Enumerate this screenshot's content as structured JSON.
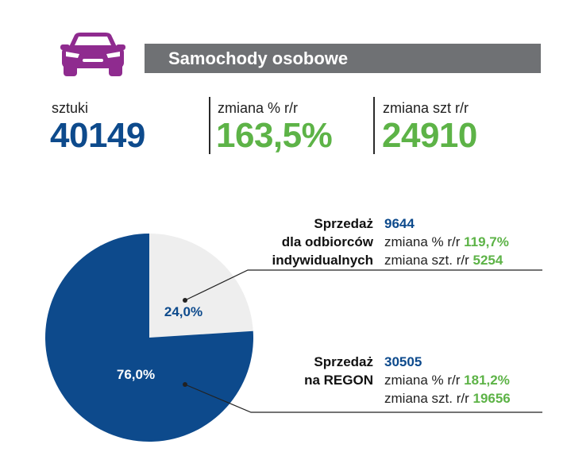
{
  "header": {
    "title": "Samochody osobowe",
    "icon": "car-icon",
    "icon_color": "#8f2b8f",
    "bar_color": "#6f7174"
  },
  "stats": [
    {
      "label": "sztuki",
      "value": "40149",
      "color": "#0d4a8c"
    },
    {
      "label": "zmiana % r/r",
      "value": "163,5%",
      "color": "#5db347"
    },
    {
      "label": "zmiana szt r/r",
      "value": "24910",
      "color": "#5db347"
    }
  ],
  "chart_data": {
    "type": "pie",
    "slices": [
      {
        "label": "Sprzedaż dla odbiorców indywidualnych",
        "value": 24.0,
        "display": "24,0%",
        "color": "#eeeeee",
        "text_color": "#0d4a8c"
      },
      {
        "label": "Sprzedaż na REGON",
        "value": 76.0,
        "display": "76,0%",
        "color": "#0d4a8c",
        "text_color": "#ffffff"
      }
    ]
  },
  "legend": {
    "indywidualni": {
      "title_lines": [
        "Sprzedaż",
        "dla odbiorców",
        "indywidualnych"
      ],
      "count": "9644",
      "pct_label": "zmiana % r/r",
      "pct_value": "119,7%",
      "szt_label": "zmiana szt. r/r",
      "szt_value": "5254"
    },
    "regon": {
      "title_lines": [
        "Sprzedaż",
        "na REGON"
      ],
      "count": "30505",
      "pct_label": "zmiana % r/r",
      "pct_value": "181,2%",
      "szt_label": "zmiana szt. r/r",
      "szt_value": "19656"
    }
  }
}
